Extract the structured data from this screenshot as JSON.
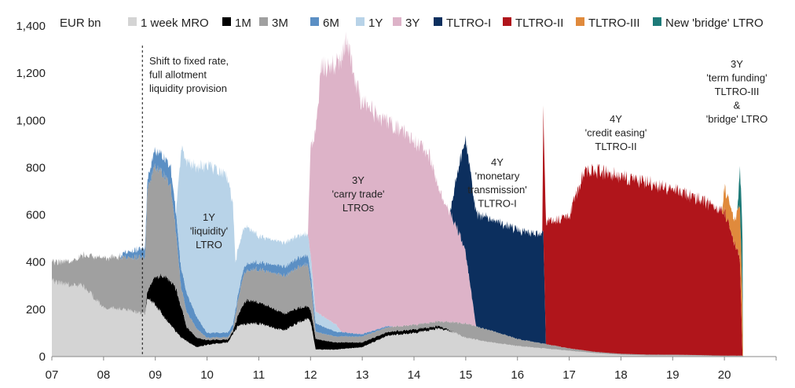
{
  "chart_data": {
    "type": "area",
    "stacked": true,
    "ylabel": "EUR bn",
    "ylim": [
      0,
      1400
    ],
    "yticks": [
      0,
      200,
      400,
      600,
      800,
      1000,
      1200,
      1400
    ],
    "ytick_labels": [
      "0",
      "200",
      "400",
      "600",
      "800",
      "1,000",
      "1,200",
      "1,400"
    ],
    "xlim": [
      2007.0,
      2021.0
    ],
    "xticks": [
      2007,
      2008,
      2009,
      2010,
      2011,
      2012,
      2013,
      2014,
      2015,
      2016,
      2017,
      2018,
      2019,
      2020
    ],
    "xtick_labels": [
      "07",
      "08",
      "09",
      "10",
      "11",
      "12",
      "13",
      "14",
      "15",
      "16",
      "17",
      "18",
      "19",
      "20"
    ],
    "legend_position": "top",
    "series": [
      {
        "name": "1 week MRO",
        "color": "#d4d4d4",
        "points": [
          [
            2007.0,
            320
          ],
          [
            2007.4,
            300
          ],
          [
            2007.6,
            300
          ],
          [
            2008.0,
            210
          ],
          [
            2008.4,
            200
          ],
          [
            2008.8,
            180
          ],
          [
            2008.85,
            250
          ],
          [
            2009.0,
            220
          ],
          [
            2009.3,
            130
          ],
          [
            2009.5,
            80
          ],
          [
            2009.8,
            40
          ],
          [
            2010.0,
            50
          ],
          [
            2010.4,
            60
          ],
          [
            2010.6,
            130
          ],
          [
            2010.8,
            140
          ],
          [
            2011.0,
            140
          ],
          [
            2011.3,
            120
          ],
          [
            2011.5,
            110
          ],
          [
            2011.8,
            150
          ],
          [
            2011.95,
            160
          ],
          [
            2012.0,
            150
          ],
          [
            2012.1,
            30
          ],
          [
            2012.5,
            30
          ],
          [
            2013.0,
            40
          ],
          [
            2013.5,
            90
          ],
          [
            2014.0,
            100
          ],
          [
            2014.5,
            120
          ],
          [
            2014.8,
            100
          ],
          [
            2015.0,
            80
          ],
          [
            2015.5,
            60
          ],
          [
            2016.0,
            45
          ],
          [
            2016.5,
            35
          ],
          [
            2017.0,
            25
          ],
          [
            2017.5,
            15
          ],
          [
            2018.0,
            8
          ],
          [
            2018.5,
            5
          ],
          [
            2019.0,
            5
          ],
          [
            2019.5,
            4
          ],
          [
            2020.0,
            2
          ],
          [
            2020.35,
            2
          ]
        ]
      },
      {
        "name": "1M",
        "color": "#000000",
        "points": [
          [
            2008.8,
            0
          ],
          [
            2008.85,
            30
          ],
          [
            2009.0,
            120
          ],
          [
            2009.2,
            180
          ],
          [
            2009.4,
            180
          ],
          [
            2009.55,
            100
          ],
          [
            2009.6,
            60
          ],
          [
            2010.0,
            20
          ],
          [
            2010.5,
            10
          ],
          [
            2010.75,
            100
          ],
          [
            2011.0,
            90
          ],
          [
            2011.3,
            80
          ],
          [
            2011.5,
            70
          ],
          [
            2011.8,
            60
          ],
          [
            2012.0,
            50
          ],
          [
            2012.2,
            40
          ],
          [
            2012.5,
            30
          ],
          [
            2013.0,
            20
          ],
          [
            2013.5,
            15
          ],
          [
            2014.0,
            15
          ],
          [
            2014.5,
            10
          ],
          [
            2014.8,
            0
          ]
        ]
      },
      {
        "name": "3M",
        "color": "#a0a0a0",
        "points": [
          [
            2007.0,
            80
          ],
          [
            2007.5,
            110
          ],
          [
            2008.0,
            210
          ],
          [
            2008.4,
            220
          ],
          [
            2008.8,
            240
          ],
          [
            2008.85,
            430
          ],
          [
            2009.0,
            470
          ],
          [
            2009.3,
            400
          ],
          [
            2009.5,
            80
          ],
          [
            2010.0,
            10
          ],
          [
            2010.5,
            10
          ],
          [
            2010.7,
            120
          ],
          [
            2011.0,
            140
          ],
          [
            2011.5,
            160
          ],
          [
            2011.95,
            180
          ],
          [
            2012.0,
            120
          ],
          [
            2012.1,
            30
          ],
          [
            2012.5,
            25
          ],
          [
            2013.0,
            25
          ],
          [
            2013.5,
            20
          ],
          [
            2014.0,
            20
          ],
          [
            2014.5,
            20
          ],
          [
            2015.0,
            60
          ],
          [
            2015.5,
            50
          ],
          [
            2016.0,
            30
          ],
          [
            2016.5,
            20
          ],
          [
            2017.0,
            10
          ],
          [
            2017.5,
            5
          ],
          [
            2018.0,
            4
          ],
          [
            2019.0,
            3
          ],
          [
            2020.0,
            2
          ],
          [
            2020.35,
            2
          ]
        ]
      },
      {
        "name": "6M",
        "color": "#5b8fc4",
        "points": [
          [
            2008.3,
            0
          ],
          [
            2008.4,
            20
          ],
          [
            2008.8,
            40
          ],
          [
            2008.85,
            40
          ],
          [
            2009.0,
            70
          ],
          [
            2009.3,
            80
          ],
          [
            2009.6,
            80
          ],
          [
            2010.0,
            20
          ],
          [
            2010.5,
            20
          ],
          [
            2010.8,
            30
          ],
          [
            2011.0,
            30
          ],
          [
            2011.5,
            40
          ],
          [
            2011.9,
            40
          ],
          [
            2012.0,
            40
          ],
          [
            2012.5,
            20
          ],
          [
            2013.0,
            10
          ],
          [
            2013.5,
            5
          ],
          [
            2013.6,
            0
          ]
        ]
      },
      {
        "name": "1Y",
        "color": "#b8d3e8",
        "points": [
          [
            2009.4,
            0
          ],
          [
            2009.5,
            520
          ],
          [
            2010.0,
            710
          ],
          [
            2010.4,
            660
          ],
          [
            2010.5,
            500
          ],
          [
            2010.55,
            200
          ],
          [
            2011.0,
            110
          ],
          [
            2011.5,
            100
          ],
          [
            2011.95,
            90
          ],
          [
            2012.0,
            80
          ],
          [
            2012.1,
            50
          ],
          [
            2012.5,
            30
          ],
          [
            2012.6,
            0
          ]
        ]
      },
      {
        "name": "3Y",
        "color": "#ddb3c8",
        "points": [
          [
            2011.95,
            0
          ],
          [
            2012.0,
            450
          ],
          [
            2012.2,
            1050
          ],
          [
            2012.5,
            1100
          ],
          [
            2012.7,
            1230
          ],
          [
            2012.95,
            1000
          ],
          [
            2013.3,
            900
          ],
          [
            2013.6,
            850
          ],
          [
            2014.0,
            780
          ],
          [
            2014.3,
            710
          ],
          [
            2014.5,
            540
          ],
          [
            2014.8,
            420
          ],
          [
            2015.0,
            300
          ],
          [
            2015.1,
            150
          ],
          [
            2015.2,
            0
          ]
        ]
      },
      {
        "name": "TLTRO-I",
        "color": "#0c2f5e",
        "points": [
          [
            2014.7,
            0
          ],
          [
            2014.8,
            180
          ],
          [
            2015.0,
            480
          ],
          [
            2015.5,
            470
          ],
          [
            2016.0,
            460
          ],
          [
            2016.5,
            460
          ],
          [
            2016.55,
            0
          ]
        ]
      },
      {
        "name": "TLTRO-II",
        "color": "#b0151b",
        "points": [
          [
            2016.48,
            0
          ],
          [
            2016.5,
            510
          ],
          [
            2016.8,
            540
          ],
          [
            2017.0,
            560
          ],
          [
            2017.3,
            770
          ],
          [
            2017.8,
            760
          ],
          [
            2018.0,
            750
          ],
          [
            2018.5,
            730
          ],
          [
            2019.0,
            700
          ],
          [
            2019.5,
            660
          ],
          [
            2020.0,
            610
          ],
          [
            2020.3,
            410
          ],
          [
            2020.35,
            0
          ]
        ]
      },
      {
        "name": "TLTRO-III",
        "color": "#e08a3c",
        "points": [
          [
            2019.95,
            0
          ],
          [
            2020.0,
            100
          ],
          [
            2020.2,
            100
          ],
          [
            2020.3,
            230
          ],
          [
            2020.35,
            230
          ],
          [
            2020.36,
            0
          ]
        ]
      },
      {
        "name": "New 'bridge' LTRO",
        "color": "#1d7a78",
        "points": [
          [
            2020.25,
            0
          ],
          [
            2020.27,
            50
          ],
          [
            2020.3,
            170
          ],
          [
            2020.33,
            250
          ],
          [
            2020.35,
            270
          ],
          [
            2020.36,
            0
          ]
        ]
      }
    ],
    "annotations": [
      {
        "id": "fixed-rate",
        "lines": [
          "Shift to fixed rate,",
          "full allotment",
          "liquidity provision"
        ]
      },
      {
        "id": "ltro-1y",
        "lines": [
          "1Y",
          "'liquidity'",
          "LTRO"
        ]
      },
      {
        "id": "ltro-3y",
        "lines": [
          "3Y",
          "'carry trade'",
          "LTROs"
        ]
      },
      {
        "id": "tltro-1",
        "lines": [
          "4Y",
          "'monetary",
          "transmission'",
          "TLTRO-I"
        ]
      },
      {
        "id": "tltro-2",
        "lines": [
          "4Y",
          "'credit easing'",
          "TLTRO-II"
        ]
      },
      {
        "id": "tltro-3",
        "lines": [
          "3Y",
          "'term funding'",
          "TLTRO-III",
          "&",
          "'bridge' LTRO"
        ]
      }
    ],
    "vline_x": 2008.75
  }
}
